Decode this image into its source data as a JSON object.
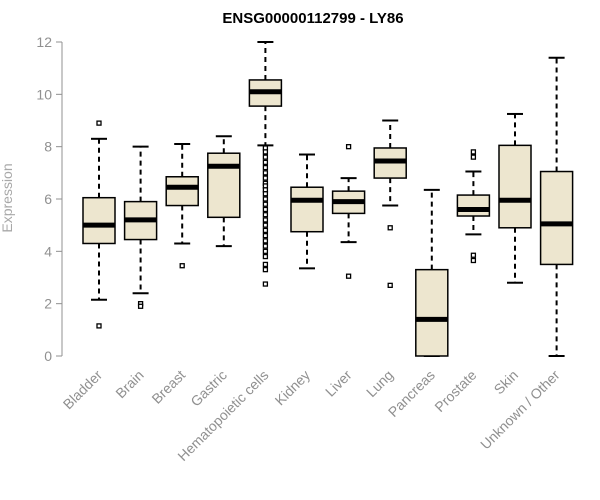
{
  "chart_data": {
    "type": "boxplot",
    "title": "ENSG00000112799 - LY86",
    "ylabel": "Expression",
    "ylim": [
      0,
      12
    ],
    "yticks": [
      0,
      2,
      4,
      6,
      8,
      10,
      12
    ],
    "box_fill": "#ede6cf",
    "outline_color": "#000000",
    "categories": [
      "Bladder",
      "Brain",
      "Breast",
      "Gastric",
      "Hematopoietic cells",
      "Kidney",
      "Liver",
      "Lung",
      "Pancreas",
      "Prostate",
      "Skin",
      "Unknown / Other"
    ],
    "boxes": [
      {
        "category": "Bladder",
        "whisker_low": 2.15,
        "q1": 4.3,
        "median": 5.0,
        "q3": 6.05,
        "whisker_high": 8.3,
        "outliers": [
          8.9,
          1.15
        ]
      },
      {
        "category": "Brain",
        "whisker_low": 2.4,
        "q1": 4.45,
        "median": 5.2,
        "q3": 5.9,
        "whisker_high": 8.0,
        "outliers": [
          2.0,
          1.9
        ]
      },
      {
        "category": "Breast",
        "whisker_low": 4.3,
        "q1": 5.75,
        "median": 6.45,
        "q3": 6.85,
        "whisker_high": 8.1,
        "outliers": [
          3.45
        ]
      },
      {
        "category": "Gastric",
        "whisker_low": 4.2,
        "q1": 5.3,
        "median": 7.25,
        "q3": 7.75,
        "whisker_high": 8.4,
        "outliers": []
      },
      {
        "category": "Hematopoietic cells",
        "whisker_low": 8.05,
        "q1": 9.55,
        "median": 10.1,
        "q3": 10.55,
        "whisker_high": 12.0,
        "outliers": [
          7.95,
          7.8,
          7.6,
          7.4,
          7.2,
          7.0,
          6.8,
          6.6,
          6.5,
          6.35,
          6.2,
          6.0,
          5.8,
          5.6,
          5.4,
          5.2,
          5.0,
          4.8,
          4.6,
          4.4,
          4.2,
          4.0,
          3.8,
          3.5,
          3.3,
          2.75
        ]
      },
      {
        "category": "Kidney",
        "whisker_low": 3.35,
        "q1": 4.75,
        "median": 5.95,
        "q3": 6.45,
        "whisker_high": 7.7,
        "outliers": []
      },
      {
        "category": "Liver",
        "whisker_low": 4.35,
        "q1": 5.45,
        "median": 5.9,
        "q3": 6.3,
        "whisker_high": 6.8,
        "outliers": [
          8.0,
          3.05
        ]
      },
      {
        "category": "Lung",
        "whisker_low": 5.75,
        "q1": 6.8,
        "median": 7.45,
        "q3": 7.95,
        "whisker_high": 9.0,
        "outliers": [
          4.9,
          2.7
        ]
      },
      {
        "category": "Pancreas",
        "whisker_low": 0.0,
        "q1": 0.0,
        "median": 1.4,
        "q3": 3.3,
        "whisker_high": 6.35,
        "outliers": []
      },
      {
        "category": "Prostate",
        "whisker_low": 4.65,
        "q1": 5.35,
        "median": 5.6,
        "q3": 6.15,
        "whisker_high": 7.05,
        "outliers": [
          7.8,
          7.6,
          3.85,
          3.65
        ]
      },
      {
        "category": "Skin",
        "whisker_low": 2.8,
        "q1": 4.9,
        "median": 5.95,
        "q3": 8.05,
        "whisker_high": 9.25,
        "outliers": []
      },
      {
        "category": "Unknown / Other",
        "whisker_low": 0.0,
        "q1": 3.5,
        "median": 5.05,
        "q3": 7.05,
        "whisker_high": 11.4,
        "outliers": []
      }
    ]
  }
}
